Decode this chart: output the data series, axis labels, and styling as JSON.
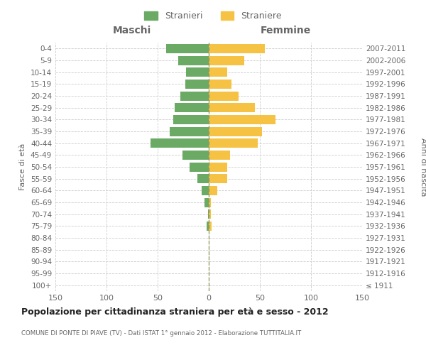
{
  "age_groups": [
    "100+",
    "95-99",
    "90-94",
    "85-89",
    "80-84",
    "75-79",
    "70-74",
    "65-69",
    "60-64",
    "55-59",
    "50-54",
    "45-49",
    "40-44",
    "35-39",
    "30-34",
    "25-29",
    "20-24",
    "15-19",
    "10-14",
    "5-9",
    "0-4"
  ],
  "birth_years": [
    "≤ 1911",
    "1912-1916",
    "1917-1921",
    "1922-1926",
    "1927-1931",
    "1932-1936",
    "1937-1941",
    "1942-1946",
    "1947-1951",
    "1952-1956",
    "1957-1961",
    "1962-1966",
    "1967-1971",
    "1972-1976",
    "1977-1981",
    "1982-1986",
    "1987-1991",
    "1992-1996",
    "1997-2001",
    "2002-2006",
    "2007-2011"
  ],
  "males": [
    0,
    0,
    0,
    0,
    0,
    2,
    1,
    4,
    7,
    11,
    19,
    26,
    57,
    38,
    35,
    33,
    28,
    23,
    22,
    30,
    42
  ],
  "females": [
    0,
    0,
    0,
    0,
    0,
    3,
    2,
    2,
    8,
    18,
    18,
    21,
    48,
    52,
    65,
    45,
    29,
    22,
    18,
    35,
    55
  ],
  "male_color": "#6aaa64",
  "female_color": "#f5c243",
  "grid_color": "#cccccc",
  "center_line_color": "#999966",
  "title": "Popolazione per cittadinanza straniera per età e sesso - 2012",
  "subtitle": "COMUNE DI PONTE DI PIAVE (TV) - Dati ISTAT 1° gennaio 2012 - Elaborazione TUTTITALIA.IT",
  "left_header": "Maschi",
  "right_header": "Femmine",
  "ylabel_left": "Fasce di età",
  "ylabel_right": "Anni di nascita",
  "legend_male": "Stranieri",
  "legend_female": "Straniere",
  "xlim": 150,
  "text_color": "#666666",
  "title_color": "#222222"
}
